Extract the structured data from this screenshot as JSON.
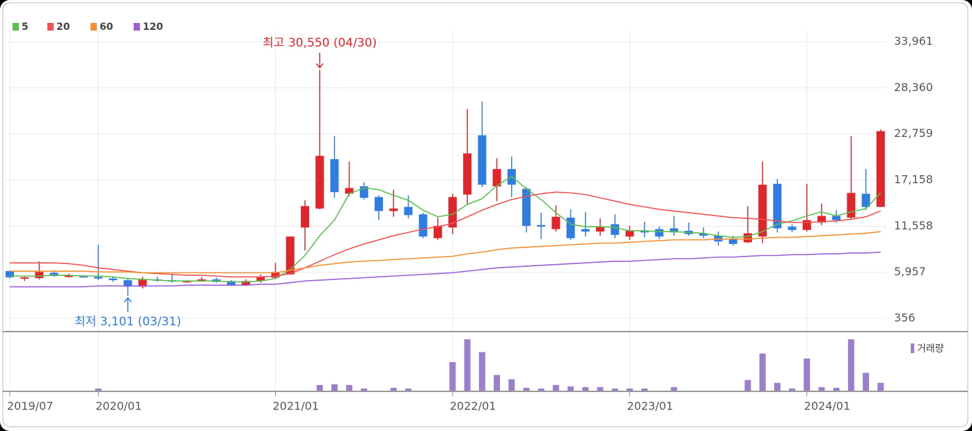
{
  "chart_data": [
    {
      "type": "candlestick",
      "categories": [
        "2019/07",
        null,
        null,
        null,
        null,
        null,
        "2020/01",
        null,
        null,
        null,
        null,
        null,
        null,
        null,
        null,
        null,
        null,
        null,
        "2021/01",
        null,
        null,
        null,
        null,
        null,
        null,
        null,
        null,
        null,
        null,
        null,
        "2022/01",
        null,
        null,
        null,
        null,
        null,
        null,
        null,
        null,
        null,
        null,
        null,
        "2023/01",
        null,
        null,
        null,
        null,
        null,
        null,
        null,
        null,
        null,
        null,
        null,
        "2024/01",
        null,
        null,
        null,
        null,
        null
      ],
      "open": [
        6100,
        5300,
        5250,
        5900,
        5500,
        5500,
        5400,
        5200,
        5000,
        4200,
        5100,
        5000,
        4800,
        4900,
        5100,
        4900,
        4400,
        4900,
        5300,
        5700,
        11400,
        13700,
        19700,
        15500,
        16400,
        15100,
        13400,
        13900,
        13000,
        10100,
        11400,
        15400,
        22600,
        16400,
        18500,
        16100,
        11700,
        11200,
        12600,
        11200,
        10900,
        11800,
        10300,
        11000,
        11200,
        11300,
        11000,
        10700,
        10400,
        10000,
        9600,
        10300,
        16700,
        11500,
        11100,
        12000,
        12800,
        12600,
        15500,
        13900
      ],
      "close": [
        5350,
        5350,
        6000,
        5500,
        5550,
        5400,
        5200,
        5000,
        4200,
        5100,
        4950,
        4900,
        4900,
        5100,
        4800,
        4400,
        4900,
        5400,
        6000,
        10300,
        14000,
        20100,
        15700,
        16200,
        15000,
        13400,
        13700,
        12900,
        10300,
        11600,
        15100,
        20400,
        16600,
        18500,
        16600,
        11600,
        11500,
        12700,
        10100,
        10900,
        11500,
        10500,
        11000,
        10800,
        10300,
        10800,
        10600,
        10400,
        9700,
        9400,
        10700,
        16600,
        11300,
        11100,
        12300,
        12800,
        12300,
        15600,
        13900,
        23100
      ],
      "high": [
        6200,
        5400,
        7300,
        6200,
        5800,
        5600,
        9300,
        5500,
        5300,
        5400,
        5400,
        5800,
        5000,
        5400,
        5300,
        5000,
        5100,
        5700,
        7100,
        10300,
        14700,
        30550,
        22500,
        19400,
        16900,
        15300,
        16000,
        15300,
        13200,
        12600,
        15500,
        25800,
        26700,
        19800,
        20000,
        16300,
        13200,
        14100,
        13600,
        13300,
        12500,
        13000,
        11600,
        12100,
        11500,
        12800,
        12000,
        11400,
        10900,
        10400,
        14000,
        19400,
        17300,
        11800,
        16700,
        14300,
        13500,
        22500,
        18500,
        23300
      ],
      "low": [
        5200,
        4900,
        5100,
        5400,
        5300,
        5300,
        5000,
        4800,
        3101,
        4000,
        4800,
        4700,
        4700,
        4800,
        4700,
        4300,
        4300,
        4700,
        5200,
        5700,
        8600,
        13600,
        15000,
        15200,
        14800,
        12300,
        12700,
        12500,
        10100,
        9900,
        10600,
        14200,
        16300,
        14600,
        15100,
        10800,
        10000,
        10900,
        9900,
        10300,
        10400,
        10100,
        9900,
        10200,
        10000,
        10400,
        10400,
        10100,
        9200,
        9200,
        9500,
        9500,
        10800,
        10800,
        10900,
        11700,
        12000,
        12400,
        13500,
        13900
      ],
      "up_color": "#e0262b",
      "down_color": "#2f7de1",
      "series": [
        {
          "name": "5",
          "color": "#5cbf52",
          "values": [
            5500,
            5500,
            5500,
            5600,
            5600,
            5500,
            5500,
            5400,
            5200,
            5100,
            5000,
            4900,
            4900,
            4900,
            4900,
            4800,
            4800,
            4900,
            5200,
            6300,
            8000,
            10400,
            12300,
            15500,
            16200,
            16000,
            15300,
            14700,
            13500,
            12700,
            13000,
            14200,
            14900,
            16500,
            17600,
            16100,
            14800,
            13200,
            11800,
            11500,
            11500,
            11400,
            11000,
            11000,
            10900,
            10900,
            10800,
            10700,
            10400,
            10200,
            10300,
            10900,
            11800,
            12200,
            12800,
            13300,
            12800,
            13300,
            13700,
            15600
          ]
        },
        {
          "name": "20",
          "color": "#ee5252",
          "values": [
            7100,
            7100,
            7100,
            7100,
            7000,
            6800,
            6500,
            6300,
            6100,
            5900,
            5800,
            5700,
            5600,
            5600,
            5500,
            5400,
            5400,
            5400,
            5500,
            5800,
            6500,
            7300,
            8100,
            8800,
            9400,
            9900,
            10400,
            10800,
            11200,
            11500,
            11900,
            12700,
            13500,
            14200,
            14800,
            15200,
            15500,
            15700,
            15600,
            15400,
            15000,
            14600,
            14200,
            13900,
            13600,
            13400,
            13200,
            13000,
            12800,
            12600,
            12500,
            12400,
            12200,
            12000,
            12000,
            12100,
            12200,
            12400,
            12700,
            13400
          ]
        },
        {
          "name": "60",
          "color": "#f39033",
          "values": [
            6100,
            6100,
            6100,
            6100,
            6100,
            6100,
            6000,
            6000,
            6000,
            5900,
            5900,
            5900,
            5900,
            5900,
            5900,
            5900,
            5900,
            5900,
            5900,
            6200,
            6500,
            6800,
            7000,
            7200,
            7300,
            7400,
            7500,
            7600,
            7700,
            7800,
            7900,
            8200,
            8400,
            8700,
            8900,
            9000,
            9100,
            9200,
            9300,
            9400,
            9500,
            9500,
            9600,
            9700,
            9800,
            9900,
            9900,
            9900,
            10000,
            10000,
            10000,
            10100,
            10200,
            10200,
            10300,
            10400,
            10500,
            10600,
            10700,
            10900
          ]
        },
        {
          "name": "120",
          "color": "#9b5fd6",
          "values": [
            4200,
            4200,
            4200,
            4200,
            4200,
            4200,
            4300,
            4300,
            4300,
            4300,
            4300,
            4300,
            4400,
            4400,
            4400,
            4400,
            4400,
            4500,
            4500,
            4700,
            4900,
            5000,
            5100,
            5200,
            5300,
            5400,
            5500,
            5600,
            5700,
            5800,
            5900,
            6100,
            6300,
            6500,
            6600,
            6700,
            6800,
            6900,
            7000,
            7100,
            7200,
            7300,
            7300,
            7400,
            7500,
            7600,
            7600,
            7700,
            7800,
            7800,
            7900,
            8000,
            8000,
            8100,
            8100,
            8200,
            8200,
            8300,
            8300,
            8400
          ]
        }
      ],
      "ylim": [
        -1160,
        35230
      ],
      "yticks": [
        356,
        {
          "value": 5957,
          "label": "5,957"
        },
        {
          "value": 11558,
          "label": "11,558"
        },
        {
          "value": 17158,
          "label": "17,158"
        },
        {
          "value": 22759,
          "label": "22,759"
        },
        {
          "value": 28360,
          "label": "28,360"
        },
        {
          "value": 33961,
          "label": "33,961"
        }
      ],
      "grid": true,
      "annotations": {
        "high": "최고 30,550 (04/30)",
        "low": "최저 3,101 (03/31)"
      }
    },
    {
      "type": "bar",
      "series": [
        {
          "name": "거래량",
          "color": "#9b7fcc",
          "values": [
            0,
            0,
            0,
            0,
            0,
            0,
            3,
            0,
            0,
            0,
            0,
            0,
            0,
            0,
            0,
            0,
            0,
            0,
            0,
            0,
            0,
            8,
            9,
            8,
            3,
            0,
            4,
            3,
            0,
            0,
            40,
            72,
            54,
            22,
            16,
            4,
            3,
            8,
            6,
            5,
            5,
            3,
            3,
            3,
            0,
            5,
            0,
            0,
            0,
            0,
            15,
            52,
            11,
            3,
            45,
            5,
            4,
            72,
            25,
            11
          ]
        }
      ]
    }
  ]
}
